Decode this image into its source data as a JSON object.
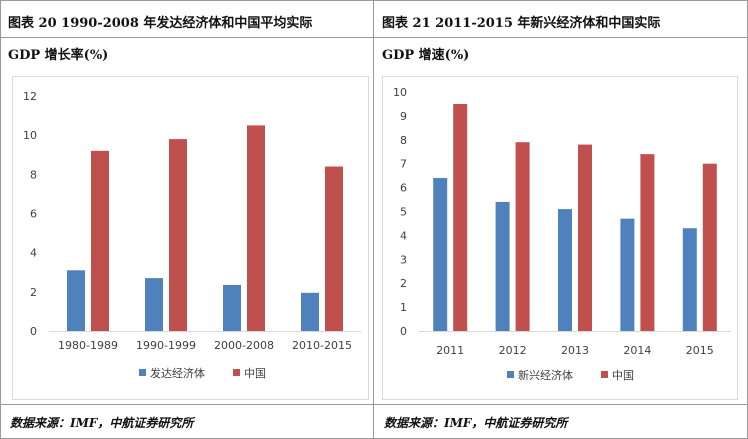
{
  "panels": [
    {
      "title_line1": "图表  20  1990-2008 年发达经济体和中国平均实际",
      "title_line2": "GDP 增长率(%)",
      "source": "数据来源：IMF，中航证券研究所",
      "chart_data": {
        "type": "bar",
        "categories": [
          "1980-1989",
          "1990-1999",
          "2000-2008",
          "2010-2015"
        ],
        "series": [
          {
            "name": "发达经济体",
            "color": "#4f81bd",
            "values": [
              3.1,
              2.7,
              2.35,
              1.95
            ]
          },
          {
            "name": "中国",
            "color": "#c0504d",
            "values": [
              9.2,
              9.8,
              10.5,
              8.4
            ]
          }
        ],
        "yticks": [
          0,
          2,
          4,
          6,
          8,
          10,
          12
        ],
        "ylim": [
          0,
          12
        ],
        "legend": "bottom"
      }
    },
    {
      "title_line1": "图表  21  2011-2015 年新兴经济体和中国实际",
      "title_line2": "GDP 增速(%)",
      "source": "数据来源：IMF，中航证券研究所",
      "chart_data": {
        "type": "bar",
        "categories": [
          "2011",
          "2012",
          "2013",
          "2014",
          "2015"
        ],
        "series": [
          {
            "name": "新兴经济体",
            "color": "#4f81bd",
            "values": [
              6.4,
              5.4,
              5.1,
              4.7,
              4.3
            ]
          },
          {
            "name": "中国",
            "color": "#c0504d",
            "values": [
              9.5,
              7.9,
              7.8,
              7.4,
              7.0
            ]
          }
        ],
        "yticks": [
          0,
          1,
          2,
          3,
          4,
          5,
          6,
          7,
          8,
          9,
          10
        ],
        "ylim": [
          0,
          10
        ],
        "legend": "bottom"
      }
    }
  ]
}
